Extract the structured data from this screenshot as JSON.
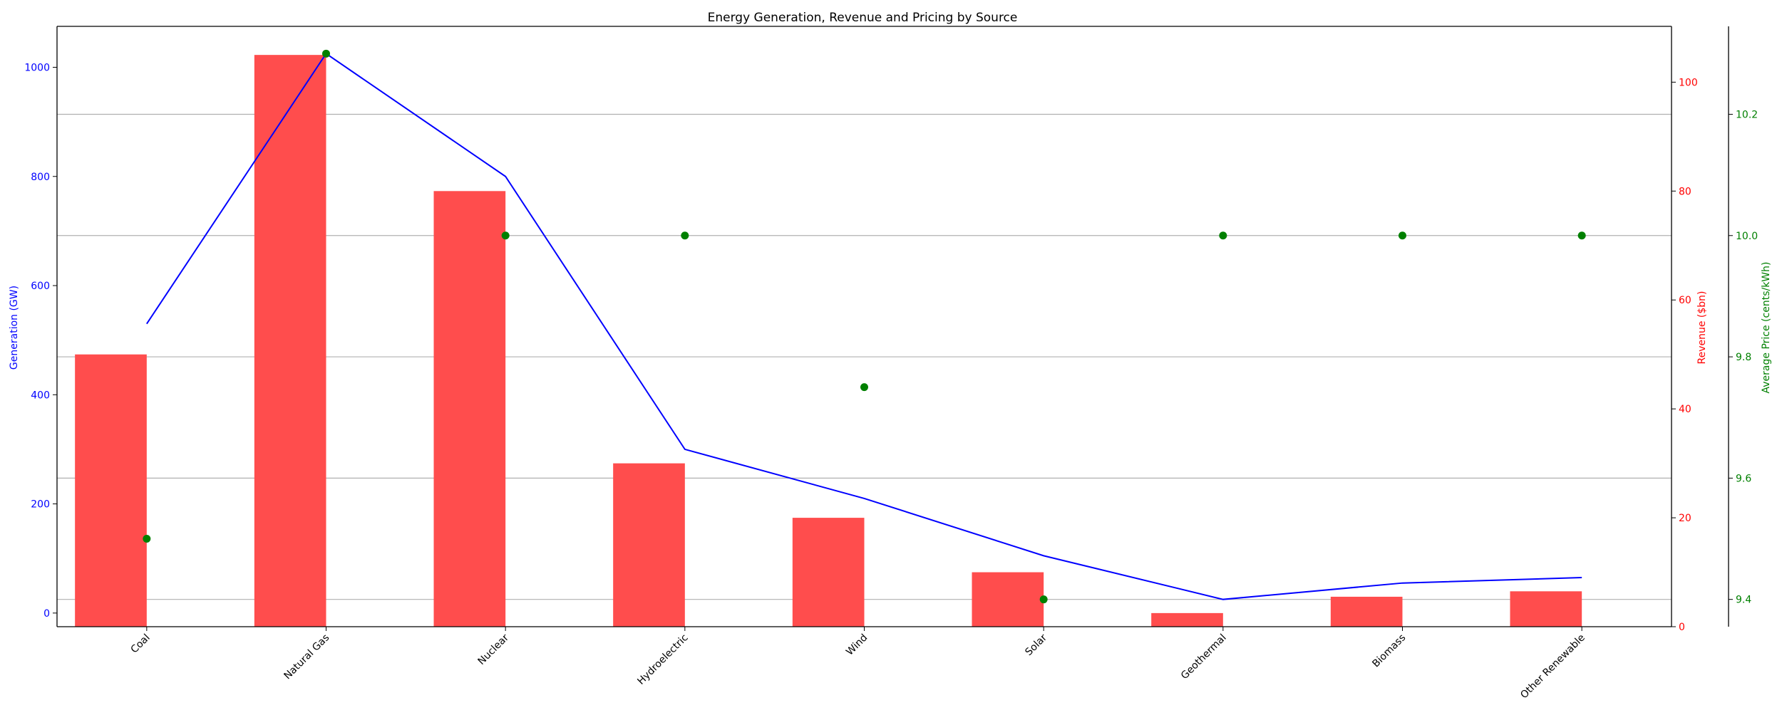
{
  "chart_data": {
    "type": "bar",
    "title": "Energy Generation, Revenue and Pricing by Source",
    "categories": [
      "Coal",
      "Natural Gas",
      "Nuclear",
      "Hydroelectric",
      "Wind",
      "Solar",
      "Geothermal",
      "Biomass",
      "Other Renewable"
    ],
    "series": [
      {
        "name": "Generation (GW)",
        "kind": "line",
        "axis": "left",
        "color": "#0000ff",
        "values": [
          530,
          1025,
          800,
          300,
          210,
          105,
          25,
          55,
          65
        ]
      },
      {
        "name": "Revenue ($bn)",
        "kind": "bar",
        "axis": "right",
        "color": "#ff4d4d",
        "values": [
          50,
          105,
          80,
          30,
          20,
          10,
          2.5,
          5.5,
          6.5
        ]
      },
      {
        "name": "Average Price (cents/kWh)",
        "kind": "scatter",
        "axis": "right-outer",
        "color": "#008000",
        "values": [
          9.5,
          10.3,
          10.0,
          10.0,
          9.75,
          9.4,
          10.0,
          10.0,
          10.0
        ]
      }
    ],
    "axes": {
      "left": {
        "label": "Generation (GW)",
        "color": "#0000ff",
        "ylim": [
          -25,
          1075
        ],
        "ticks": [
          0,
          200,
          400,
          600,
          800,
          1000
        ]
      },
      "right": {
        "label": "Revenue ($bn)",
        "color": "#ff0000",
        "ylim": [
          0,
          110.25
        ],
        "ticks": [
          0,
          20,
          40,
          60,
          80,
          100
        ]
      },
      "right_outer": {
        "label": "Average Price (cents/kWh)",
        "color": "#008000",
        "ylim": [
          9.355,
          10.345
        ],
        "ticks": [
          9.4,
          9.6,
          9.8,
          10.0,
          10.2
        ]
      }
    },
    "grid": "horizontal, on outer price axis",
    "xtick_rotation": 45
  }
}
